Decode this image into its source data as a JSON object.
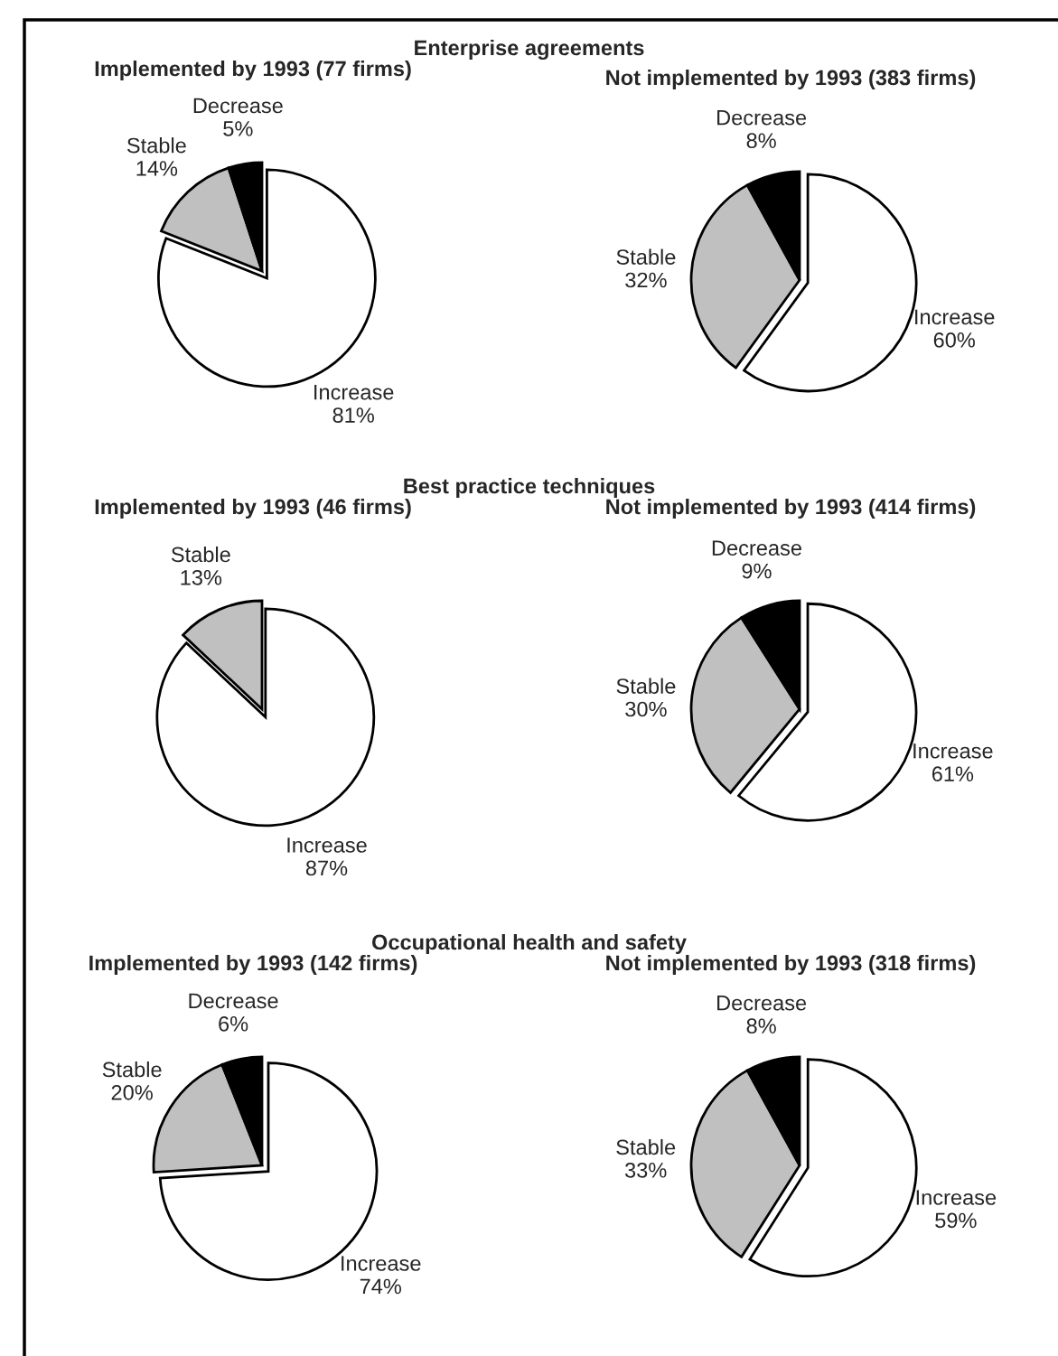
{
  "chart_data": [
    {
      "type": "pie",
      "annotations": [
        "Enterprise agreements"
      ],
      "title": "Implemented by 1993 (77 firms)",
      "categories": [
        "Increase",
        "Stable",
        "Decrease"
      ],
      "values": [
        81,
        14,
        5
      ],
      "value_labels": [
        "81%",
        "14%",
        "5%"
      ],
      "colors": [
        "#ffffff",
        "#c0c0c0",
        "#000000"
      ],
      "legend": false
    },
    {
      "type": "pie",
      "title": "Not implemented by 1993 (383 firms)",
      "categories": [
        "Increase",
        "Stable",
        "Decrease"
      ],
      "values": [
        60,
        32,
        8
      ],
      "value_labels": [
        "60%",
        "32%",
        "8%"
      ],
      "colors": [
        "#ffffff",
        "#c0c0c0",
        "#000000"
      ],
      "legend": false
    },
    {
      "type": "pie",
      "annotations": [
        "Best practice techniques"
      ],
      "title": "Implemented by 1993 (46 firms)",
      "categories": [
        "Increase",
        "Stable"
      ],
      "values": [
        87,
        13
      ],
      "value_labels": [
        "87%",
        "13%"
      ],
      "colors": [
        "#ffffff",
        "#c0c0c0"
      ],
      "legend": false
    },
    {
      "type": "pie",
      "title": "Not implemented by 1993 (414 firms)",
      "categories": [
        "Increase",
        "Stable",
        "Decrease"
      ],
      "values": [
        61,
        30,
        9
      ],
      "value_labels": [
        "61%",
        "30%",
        "9%"
      ],
      "colors": [
        "#ffffff",
        "#c0c0c0",
        "#000000"
      ],
      "legend": false
    },
    {
      "type": "pie",
      "annotations": [
        "Occupational health and safety"
      ],
      "title": "Implemented by 1993 (142 firms)",
      "categories": [
        "Increase",
        "Stable",
        "Decrease"
      ],
      "values": [
        74,
        20,
        6
      ],
      "value_labels": [
        "74%",
        "20%",
        "6%"
      ],
      "colors": [
        "#ffffff",
        "#c0c0c0",
        "#000000"
      ],
      "legend": false
    },
    {
      "type": "pie",
      "title": "Not implemented by 1993 (318 firms)",
      "categories": [
        "Increase",
        "Stable",
        "Decrease"
      ],
      "values": [
        59,
        33,
        8
      ],
      "value_labels": [
        "59%",
        "33%",
        "8%"
      ],
      "colors": [
        "#ffffff",
        "#c0c0c0",
        "#000000"
      ],
      "legend": false
    }
  ]
}
